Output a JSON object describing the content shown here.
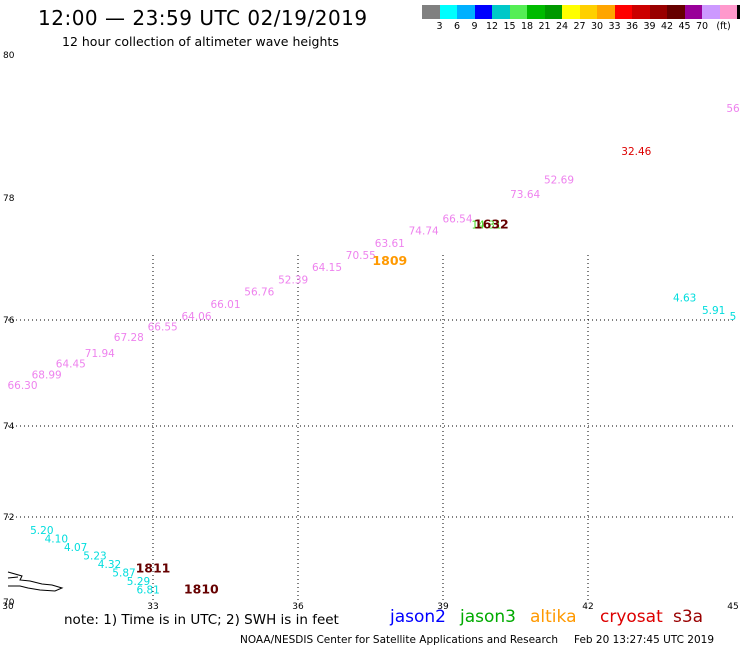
{
  "header": {
    "title": "12:00 — 23:59 UTC 02/19/2019",
    "subtitle": "12 hour collection of altimeter wave heights"
  },
  "color_scale": {
    "unit_label": "(ft)",
    "swatches": [
      "#808080",
      "#00ffff",
      "#00b0ff",
      "#0000ff",
      "#00c8c8",
      "#55ee55",
      "#00bb00",
      "#009900",
      "#ffff00",
      "#ffd000",
      "#ffa500",
      "#ff0000",
      "#cc0000",
      "#990000",
      "#660000",
      "#990099",
      "#cc99ff",
      "#ff99cc",
      "#000000"
    ],
    "labels": [
      "3",
      "6",
      "9",
      "12",
      "15",
      "18",
      "21",
      "24",
      "27",
      "30",
      "33",
      "36",
      "39",
      "42",
      "45",
      "70"
    ]
  },
  "map": {
    "x_ticks": [
      "30",
      "33",
      "36",
      "39",
      "42",
      "45"
    ],
    "y_ticks": [
      "80",
      "78",
      "76",
      "74",
      "72",
      "70"
    ]
  },
  "chart_data": {
    "type": "scatter",
    "xlim": [
      30,
      45
    ],
    "ylim": [
      70,
      80
    ],
    "xlabel": "",
    "ylabel": "",
    "grid": true,
    "series": [
      {
        "name": "s3a",
        "color": "#ee82ee",
        "points": [
          {
            "x": 30.3,
            "y": 74.7,
            "label": "66.30"
          },
          {
            "x": 30.8,
            "y": 74.9,
            "label": "68.99"
          },
          {
            "x": 31.3,
            "y": 75.1,
            "label": "64.45"
          },
          {
            "x": 31.9,
            "y": 75.3,
            "label": "71.94"
          },
          {
            "x": 32.5,
            "y": 75.6,
            "label": "67.28"
          },
          {
            "x": 33.2,
            "y": 75.8,
            "label": "66.55"
          },
          {
            "x": 33.9,
            "y": 76.0,
            "label": "64.06"
          },
          {
            "x": 34.5,
            "y": 76.2,
            "label": "66.01"
          },
          {
            "x": 35.2,
            "y": 76.4,
            "label": "56.76"
          },
          {
            "x": 35.9,
            "y": 76.6,
            "label": "52.39"
          },
          {
            "x": 36.6,
            "y": 76.8,
            "label": "64.15"
          },
          {
            "x": 37.3,
            "y": 77.0,
            "label": "70.55"
          },
          {
            "x": 37.9,
            "y": 77.2,
            "label": "63.61"
          },
          {
            "x": 38.6,
            "y": 77.4,
            "label": "74.74"
          },
          {
            "x": 39.3,
            "y": 77.6,
            "label": "66.54"
          },
          {
            "x": 40.7,
            "y": 78.0,
            "label": "73.64"
          },
          {
            "x": 41.4,
            "y": 78.2,
            "label": "52.69"
          },
          {
            "x": 45.0,
            "y": 79.2,
            "label": "56"
          }
        ]
      },
      {
        "name": "cryosat",
        "color": "#dd0000",
        "points": [
          {
            "x": 43.0,
            "y": 78.6,
            "label": "32.46"
          }
        ]
      },
      {
        "name": "jason3",
        "color": "#44dd22",
        "points": [
          {
            "x": 39.9,
            "y": 77.5,
            "label": "14.31"
          }
        ]
      },
      {
        "name": "jason2",
        "color": "#00dddd",
        "points": [
          {
            "x": 44.0,
            "y": 76.3,
            "label": "4.63"
          },
          {
            "x": 44.6,
            "y": 76.1,
            "label": "5.91"
          },
          {
            "x": 45.0,
            "y": 76.0,
            "label": "5"
          },
          {
            "x": 30.7,
            "y": 71.6,
            "label": "5.20"
          },
          {
            "x": 31.0,
            "y": 71.4,
            "label": "4.10"
          },
          {
            "x": 31.4,
            "y": 71.2,
            "label": "4.07"
          },
          {
            "x": 31.8,
            "y": 71.0,
            "label": "5.23"
          },
          {
            "x": 32.1,
            "y": 70.8,
            "label": "4.32"
          },
          {
            "x": 32.4,
            "y": 70.6,
            "label": "5.87"
          },
          {
            "x": 32.7,
            "y": 70.4,
            "label": "5.29"
          },
          {
            "x": 32.9,
            "y": 70.2,
            "label": "6.81"
          }
        ]
      }
    ],
    "time_labels": [
      {
        "x": 40.0,
        "y": 77.5,
        "label": "1632",
        "color": "#660000"
      },
      {
        "x": 37.9,
        "y": 76.9,
        "label": "1809",
        "color": "#ff9900"
      },
      {
        "x": 33.0,
        "y": 70.7,
        "label": "1811",
        "color": "#660000"
      },
      {
        "x": 34.0,
        "y": 70.2,
        "label": "1810",
        "color": "#660000"
      }
    ]
  },
  "footer": {
    "note": "note:  1) Time is in UTC;  2) SWH is in feet",
    "satellites": [
      {
        "name": "jason2",
        "color": "#0000ff"
      },
      {
        "name": "jason3",
        "color": "#00aa00"
      },
      {
        "name": "altika",
        "color": "#ff9900"
      },
      {
        "name": "cryosat",
        "color": "#dd0000"
      },
      {
        "name": "s3a",
        "color": "#990000"
      }
    ],
    "credit": "NOAA/NESDIS Center for Satellite Applications and Research",
    "timestamp": "Feb 20 13:27:45 UTC 2019"
  }
}
